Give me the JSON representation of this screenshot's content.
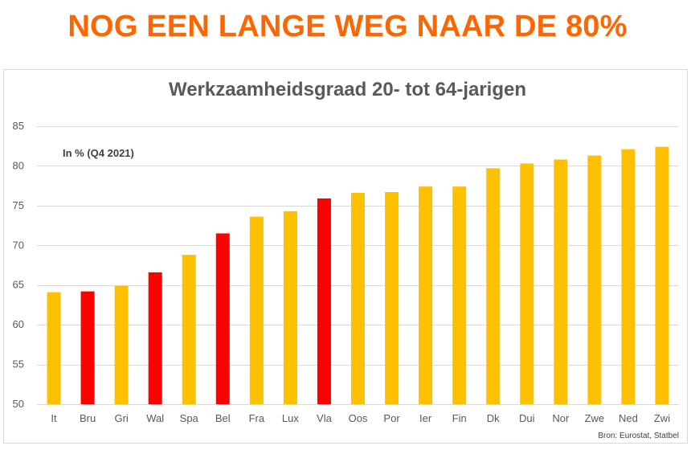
{
  "headline": "NOG EEN LANGE WEG NAAR DE 80%",
  "note": "In % (Q4 2021)",
  "source": "Bron: Eurostat, Statbel",
  "colors": {
    "headline": "#FF6600",
    "default_bar": "#FFC000",
    "highlight_bar": "#FF0000",
    "grid": "#D9D9D9"
  },
  "chart_data": {
    "type": "bar",
    "title": "Werkzaamheidsgraad 20- tot 64-jarigen",
    "xlabel": "",
    "ylabel": "",
    "ylim": [
      50,
      85
    ],
    "yticks": [
      50,
      55,
      60,
      65,
      70,
      75,
      80,
      85
    ],
    "grid": true,
    "categories": [
      "It",
      "Bru",
      "Gri",
      "Wal",
      "Spa",
      "Bel",
      "Fra",
      "Lux",
      "Vla",
      "Oos",
      "Por",
      "Ier",
      "Fin",
      "Dk",
      "Dui",
      "Nor",
      "Zwe",
      "Ned",
      "Zwi"
    ],
    "values": [
      64.1,
      64.2,
      64.9,
      66.6,
      68.8,
      71.5,
      73.6,
      74.3,
      75.9,
      76.6,
      76.7,
      77.4,
      77.4,
      79.7,
      80.3,
      80.8,
      81.3,
      82.1,
      82.4
    ],
    "highlighted": [
      "Bru",
      "Wal",
      "Bel",
      "Vla"
    ]
  }
}
